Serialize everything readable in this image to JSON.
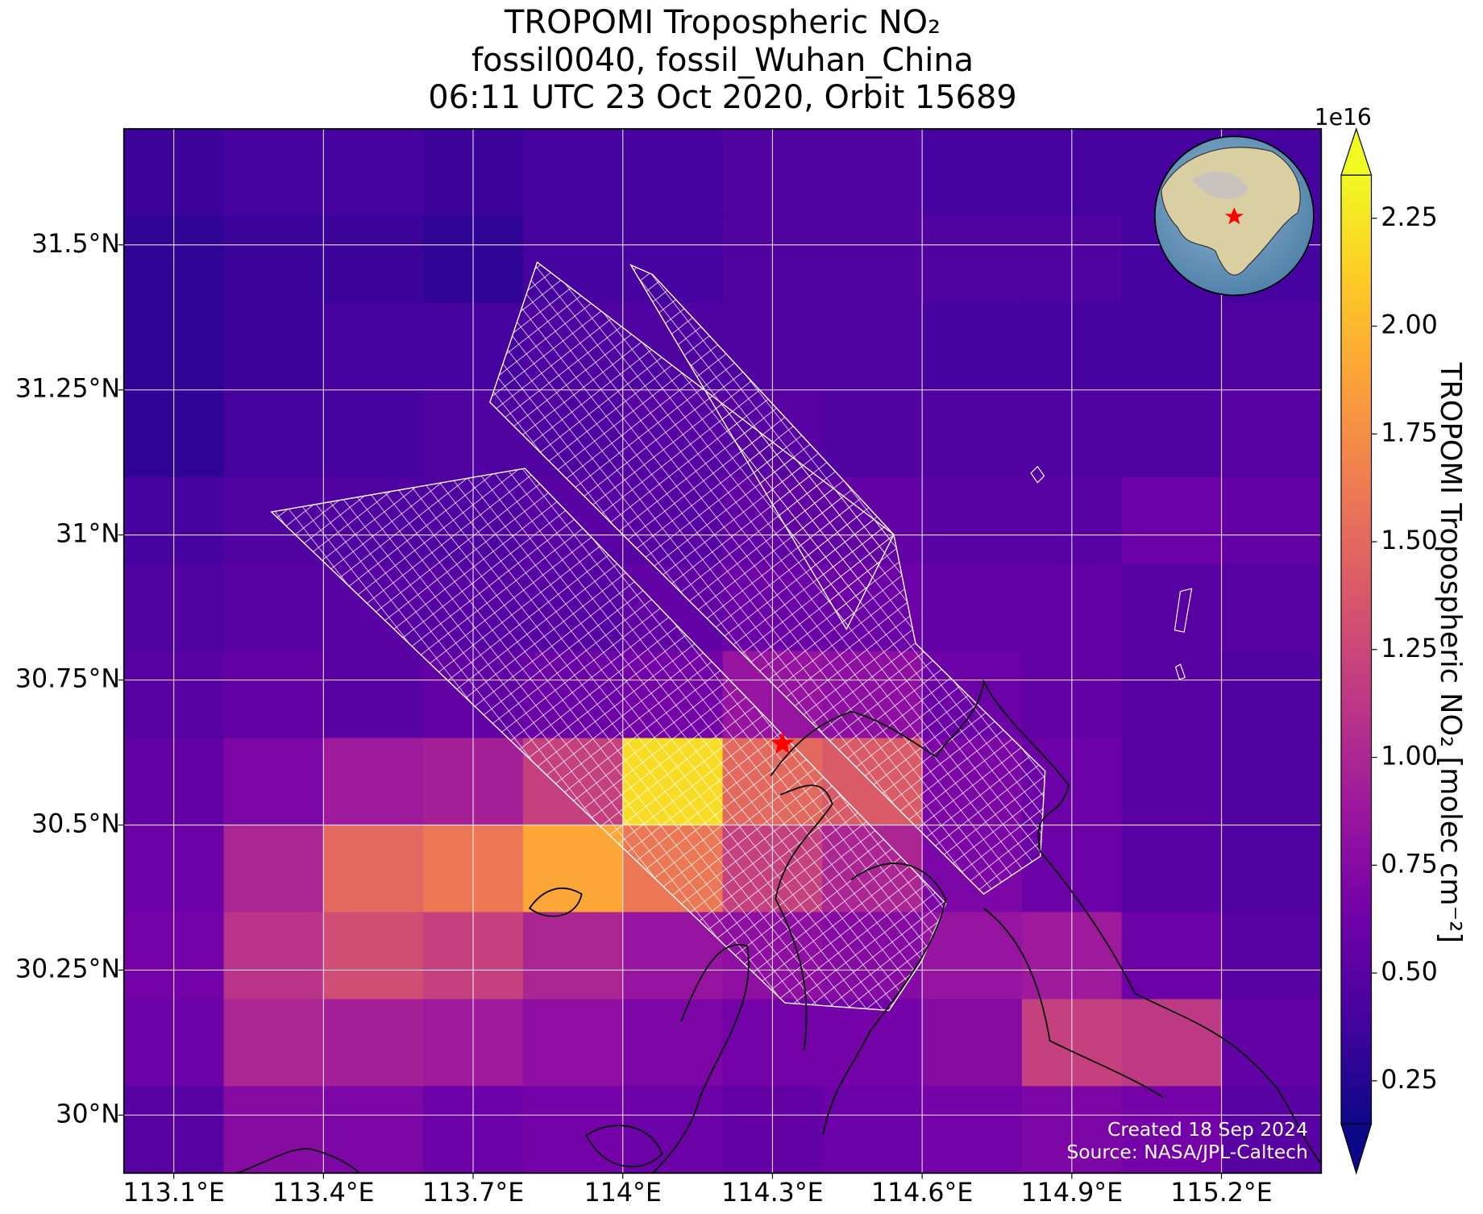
{
  "chart_data": {
    "type": "heatmap",
    "title": "TROPOMI Tropospheric NO₂",
    "subtitle": [
      "fossil0040, fossil_Wuhan_China",
      "06:11 UTC 23 Oct 2020, Orbit 15689"
    ],
    "xlim": [
      113.0,
      115.4
    ],
    "ylim": [
      29.9,
      31.7
    ],
    "xticks": [
      {
        "value": 113.1,
        "label": "113.1°E"
      },
      {
        "value": 113.4,
        "label": "113.4°E"
      },
      {
        "value": 113.7,
        "label": "113.7°E"
      },
      {
        "value": 114.0,
        "label": "114°E"
      },
      {
        "value": 114.3,
        "label": "114.3°E"
      },
      {
        "value": 114.6,
        "label": "114.6°E"
      },
      {
        "value": 114.9,
        "label": "114.9°E"
      },
      {
        "value": 115.2,
        "label": "115.2°E"
      }
    ],
    "yticks": [
      {
        "value": 30.0,
        "label": "30°N"
      },
      {
        "value": 30.25,
        "label": "30.25°N"
      },
      {
        "value": 30.5,
        "label": "30.5°N"
      },
      {
        "value": 30.75,
        "label": "30.75°N"
      },
      {
        "value": 31.0,
        "label": "31°N"
      },
      {
        "value": 31.25,
        "label": "31.25°N"
      },
      {
        "value": 31.5,
        "label": "31.5°N"
      }
    ],
    "grid": true,
    "lon_edges": [
      113.0,
      113.2,
      113.4,
      113.6,
      113.8,
      114.0,
      114.2,
      114.4,
      114.6,
      114.8,
      115.0,
      115.2,
      115.4
    ],
    "lat_edges": [
      31.7,
      31.55,
      31.4,
      31.25,
      31.1,
      30.95,
      30.8,
      30.65,
      30.5,
      30.35,
      30.2,
      30.05,
      29.9
    ],
    "values": [
      [
        0.35,
        0.4,
        0.4,
        0.35,
        0.4,
        0.4,
        0.45,
        0.45,
        0.4,
        0.4,
        0.4,
        0.4
      ],
      [
        0.3,
        0.35,
        0.35,
        0.3,
        0.4,
        0.4,
        0.45,
        0.45,
        0.45,
        0.45,
        0.4,
        0.4
      ],
      [
        0.3,
        0.35,
        0.4,
        0.4,
        0.45,
        0.45,
        0.45,
        0.45,
        0.4,
        0.4,
        0.4,
        0.45
      ],
      [
        0.3,
        0.4,
        0.4,
        0.45,
        0.45,
        0.5,
        0.5,
        0.45,
        0.45,
        0.45,
        0.45,
        0.5
      ],
      [
        0.4,
        0.45,
        0.45,
        0.45,
        0.5,
        0.5,
        0.55,
        0.55,
        0.5,
        0.5,
        0.6,
        0.55
      ],
      [
        0.45,
        0.5,
        0.5,
        0.5,
        0.5,
        0.55,
        0.6,
        0.6,
        0.55,
        0.55,
        0.5,
        0.5
      ],
      [
        0.5,
        0.55,
        0.5,
        0.55,
        0.6,
        0.65,
        0.85,
        0.8,
        0.6,
        0.55,
        0.5,
        0.45
      ],
      [
        0.55,
        0.7,
        0.9,
        0.95,
        1.2,
        2.2,
        1.5,
        1.4,
        0.7,
        0.6,
        0.5,
        0.45
      ],
      [
        0.6,
        1.0,
        1.5,
        1.6,
        1.9,
        1.6,
        1.2,
        1.0,
        0.7,
        0.6,
        0.5,
        0.45
      ],
      [
        0.65,
        1.1,
        1.3,
        1.2,
        1.0,
        0.85,
        0.8,
        0.75,
        0.85,
        0.9,
        0.6,
        0.5
      ],
      [
        0.6,
        1.0,
        0.95,
        0.9,
        0.8,
        0.7,
        0.65,
        0.65,
        0.75,
        1.2,
        1.15,
        0.55
      ],
      [
        0.5,
        0.75,
        0.7,
        0.6,
        0.65,
        0.6,
        0.55,
        0.6,
        0.65,
        0.7,
        0.65,
        0.5
      ]
    ],
    "colormap": [
      "#0d0887",
      "#46039f",
      "#7201a8",
      "#9c179e",
      "#bd3786",
      "#d8576b",
      "#ed7953",
      "#fb9f3a",
      "#fdca26",
      "#f0f921"
    ],
    "clim": [
      0.15,
      2.35
    ],
    "cticks": [
      0.25,
      {
        "value": 0.5,
        "label": "0.50"
      },
      0.75,
      {
        "value": 1.0,
        "label": "1.00"
      },
      1.25,
      {
        "value": 1.5,
        "label": "1.50"
      },
      1.75,
      {
        "value": 2.0,
        "label": "2.00"
      },
      2.25
    ],
    "colorbar_offset": "1e16",
    "colorbar_label": "TROPOMI Tropospheric NO₂ [molec cm⁻²]",
    "site": {
      "lon": 114.32,
      "lat": 30.64,
      "color": "#ff0000"
    },
    "annotations": [
      "Created 18 Sep 2024",
      "Source: NASA/JPL-Caltech"
    ]
  }
}
